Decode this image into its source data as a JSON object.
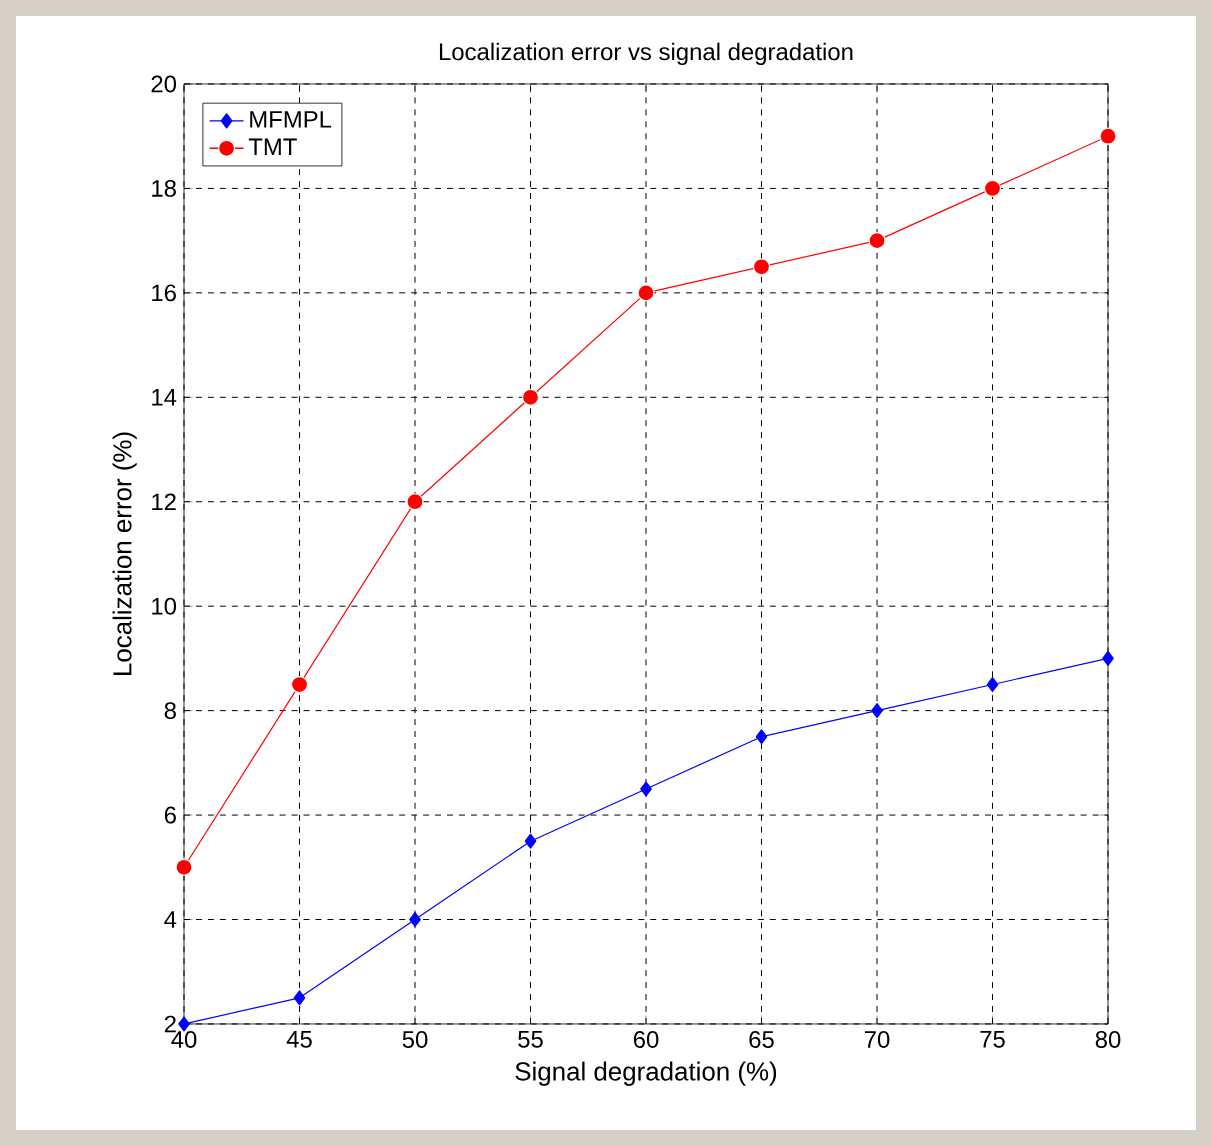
{
  "chart_data": {
    "type": "line",
    "title": "Localization error vs signal degradation",
    "xlabel": "Signal degradation (%)",
    "ylabel": "Localization error (%)",
    "x": [
      40,
      45,
      50,
      55,
      60,
      65,
      70,
      75,
      80
    ],
    "series": [
      {
        "name": "MFMPL",
        "color": "#0000ff",
        "marker": "diamond",
        "values": [
          2,
          2.5,
          4,
          5.5,
          6.5,
          7.5,
          8,
          8.5,
          9
        ]
      },
      {
        "name": "TMT",
        "color": "#ff0000",
        "marker": "circle",
        "values": [
          5,
          8.5,
          12,
          14,
          16,
          16.5,
          17,
          18,
          19
        ]
      }
    ],
    "xlim": [
      40,
      80
    ],
    "ylim": [
      2,
      20
    ],
    "xticks": [
      40,
      45,
      50,
      55,
      60,
      65,
      70,
      75,
      80
    ],
    "yticks": [
      2,
      4,
      6,
      8,
      10,
      12,
      14,
      16,
      18,
      20
    ],
    "grid": true,
    "legend": "top left",
    "line_style": "solid"
  }
}
